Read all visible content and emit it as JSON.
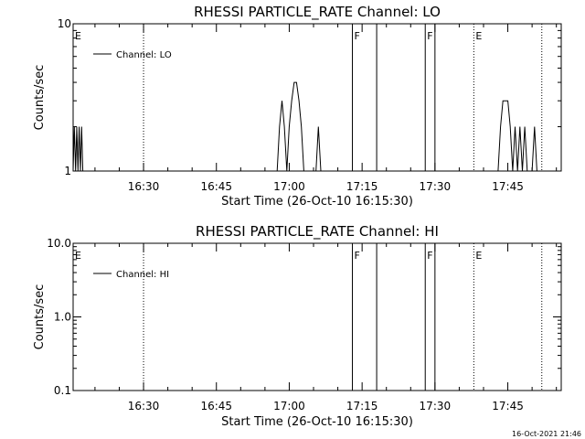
{
  "timestamp": "16-Oct-2021 21:46",
  "chart_data": [
    {
      "type": "line",
      "title": "RHESSI PARTICLE_RATE Channel: LO",
      "xlabel": "Start Time (26-Oct-10 16:15:30)",
      "ylabel": "Counts/sec",
      "x_range": [
        "16:15:30",
        "17:56:00"
      ],
      "x_ticks": [
        "16:30",
        "16:45",
        "17:00",
        "17:15",
        "17:30",
        "17:45"
      ],
      "y_scale": "log",
      "ylim": [
        1,
        10
      ],
      "y_tick_labels": [
        {
          "value": 1,
          "label": "1"
        },
        {
          "value": 10,
          "label": "10"
        }
      ],
      "legend": {
        "label": "Channel: LO",
        "position": "top-left"
      },
      "flag_lines": [
        {
          "time": "16:15:30",
          "flag": "E",
          "style": "dotted"
        },
        {
          "time": "16:30",
          "flag": "",
          "style": "dotted"
        },
        {
          "time": "17:13",
          "flag": "F",
          "style": "solid"
        },
        {
          "time": "17:18",
          "flag": "",
          "style": "solid"
        },
        {
          "time": "17:28",
          "flag": "F",
          "style": "solid"
        },
        {
          "time": "17:30",
          "flag": "",
          "style": "solid"
        },
        {
          "time": "17:38",
          "flag": "E",
          "style": "dotted"
        },
        {
          "time": "17:52",
          "flag": "",
          "style": "dotted"
        }
      ],
      "series": [
        {
          "points": [
            [
              "16:15:30",
              1
            ],
            [
              "16:15:45",
              2
            ],
            [
              "16:16:00",
              1
            ],
            [
              "16:16:15",
              2
            ],
            [
              "16:16:30",
              1
            ],
            [
              "16:16:45",
              2
            ],
            [
              "16:17:00",
              1
            ],
            [
              "16:17:15",
              2
            ],
            [
              "16:17:30",
              1
            ],
            [
              "16:57:30",
              1
            ],
            [
              "16:58:00",
              2
            ],
            [
              "16:58:30",
              3
            ],
            [
              "16:59:00",
              2
            ],
            [
              "16:59:30",
              1
            ],
            [
              "17:00:00",
              2
            ],
            [
              "17:00:30",
              3
            ],
            [
              "17:01:00",
              4
            ],
            [
              "17:01:30",
              4
            ],
            [
              "17:02:00",
              3
            ],
            [
              "17:02:30",
              2
            ],
            [
              "17:03:00",
              1
            ],
            [
              "17:05:30",
              1
            ],
            [
              "17:06:00",
              2
            ],
            [
              "17:06:30",
              1
            ],
            [
              "17:43:00",
              1
            ],
            [
              "17:43:30",
              2
            ],
            [
              "17:44:00",
              3
            ],
            [
              "17:44:30",
              3
            ],
            [
              "17:45:00",
              3
            ],
            [
              "17:45:30",
              2
            ],
            [
              "17:46:00",
              1
            ],
            [
              "17:46:30",
              2
            ],
            [
              "17:47:00",
              1
            ],
            [
              "17:47:30",
              2
            ],
            [
              "17:48:00",
              1
            ],
            [
              "17:48:30",
              2
            ],
            [
              "17:49:00",
              1
            ],
            [
              "17:50:00",
              1
            ],
            [
              "17:50:30",
              2
            ],
            [
              "17:51:00",
              1
            ]
          ]
        }
      ]
    },
    {
      "type": "line",
      "title": "RHESSI PARTICLE_RATE Channel: HI",
      "xlabel": "Start Time (26-Oct-10 16:15:30)",
      "ylabel": "Counts/sec",
      "x_range": [
        "16:15:30",
        "17:56:00"
      ],
      "x_ticks": [
        "16:30",
        "16:45",
        "17:00",
        "17:15",
        "17:30",
        "17:45"
      ],
      "y_scale": "log",
      "ylim": [
        0.1,
        10
      ],
      "y_tick_labels": [
        {
          "value": 0.1,
          "label": "0.1"
        },
        {
          "value": 1,
          "label": "1.0"
        },
        {
          "value": 10,
          "label": "10.0"
        }
      ],
      "legend": {
        "label": "Channel: HI",
        "position": "top-left"
      },
      "flag_lines": [
        {
          "time": "16:15:30",
          "flag": "E",
          "style": "dotted"
        },
        {
          "time": "16:30",
          "flag": "",
          "style": "dotted"
        },
        {
          "time": "17:13",
          "flag": "F",
          "style": "solid"
        },
        {
          "time": "17:18",
          "flag": "",
          "style": "solid"
        },
        {
          "time": "17:28",
          "flag": "F",
          "style": "solid"
        },
        {
          "time": "17:30",
          "flag": "",
          "style": "solid"
        },
        {
          "time": "17:38",
          "flag": "E",
          "style": "dotted"
        },
        {
          "time": "17:52",
          "flag": "",
          "style": "dotted"
        }
      ],
      "series": [
        {
          "points": []
        }
      ]
    }
  ]
}
